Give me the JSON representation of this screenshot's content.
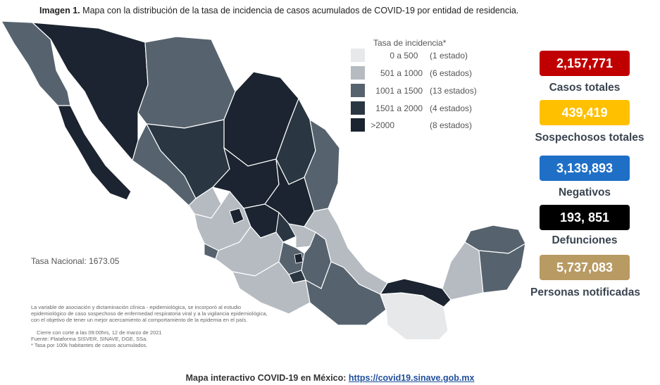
{
  "title": {
    "prefix": "Imagen 1.",
    "text": "Mapa con la distribución de la tasa de incidencia de casos acumulados de COVID-19 por entidad de residencia."
  },
  "legend": {
    "title": "Tasa de incidencia*",
    "items": [
      {
        "from": "0",
        "to": "500",
        "count": "(1 estado)",
        "color": "#e6e8ea"
      },
      {
        "from": "501",
        "to": "1000",
        "count": "(6 estados)",
        "color": "#b5bbc1"
      },
      {
        "from": "1001",
        "to": "1500",
        "count": "(13 estados)",
        "color": "#56636e"
      },
      {
        "from": "1501",
        "to": "2000",
        "count": "(4 estados)",
        "color": "#2a3642"
      },
      {
        "from": ">2000",
        "to": "",
        "count": "(8 estados)",
        "color": "#1b2430"
      }
    ]
  },
  "stats": [
    {
      "value": "2,157,771",
      "label": "Casos totales",
      "color": "#c00000"
    },
    {
      "value": "439,419",
      "label": "Sospechosos totales",
      "color": "#ffc000"
    },
    {
      "value": "3,139,893",
      "label": "Negativos",
      "color": "#1f6fc6"
    },
    {
      "value": "193, 851",
      "label": "Defunciones",
      "color": "#000000"
    },
    {
      "value": "5,737,083",
      "label": "Personas notificadas",
      "color": "#b89a63"
    }
  ],
  "national_rate": "Tasa Nacional: 1673.05",
  "notes": [
    "La variable de asociación y dictaminación clínica - epidemiológica, se incorporó al estudio",
    "epidemiológico de caso sospechoso de enfermedad respiratoria viral y a la vigilancia epidemiológica,",
    "con el objetivo de tener un mejor acercamiento al comportamiento de la epidemia en el país.",
    "Cierre con corte a las 09:00hrs, 12 de marzo de 2021",
    "Fuente: Plataforma SISVER, SINAVE, DGE, SSa.",
    "* Tasa por 100k habitantes de casos acumulados."
  ],
  "footer": {
    "label": "Mapa interactivo COVID-19 en México:",
    "link": "https://covid19.sinave.gob.mx"
  }
}
